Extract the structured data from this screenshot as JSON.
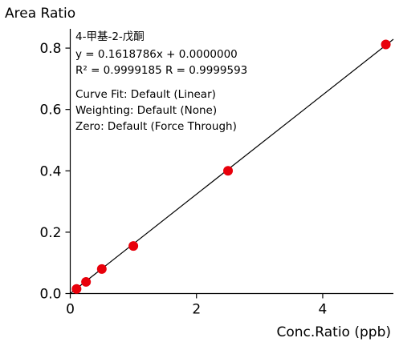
{
  "chart_data": {
    "type": "scatter",
    "xlabel": "Conc.Ratio (ppb)",
    "ylabel": "Area Ratio",
    "xlim": [
      0,
      5.12
    ],
    "ylim": [
      0,
      0.855
    ],
    "x_ticks": [
      0,
      2,
      4
    ],
    "x_tick_labels": [
      "0",
      "2",
      "4"
    ],
    "y_ticks": [
      0.0,
      0.2,
      0.4,
      0.6,
      0.8
    ],
    "y_tick_labels": [
      "0.0",
      "0.2",
      "0.4",
      "0.6",
      "0.8"
    ],
    "grid": false,
    "series": [
      {
        "color": "#e8000b",
        "points": [
          {
            "x": 0.1,
            "y": 0.015
          },
          {
            "x": 0.25,
            "y": 0.038
          },
          {
            "x": 0.5,
            "y": 0.08
          },
          {
            "x": 1.0,
            "y": 0.155
          },
          {
            "x": 2.5,
            "y": 0.4
          },
          {
            "x": 5.0,
            "y": 0.812
          }
        ]
      }
    ],
    "fit_line": {
      "slope": 0.1618786,
      "intercept": 0.0,
      "color": "#000000"
    },
    "annotations": [
      "4-甲基-2-戊酮",
      "y = 0.1618786x + 0.0000000",
      "R² = 0.9999185    R = 0.9999593",
      "Curve Fit: Default (Linear)",
      "Weighting: Default (None)",
      "Zero: Default (Force Through)"
    ]
  }
}
